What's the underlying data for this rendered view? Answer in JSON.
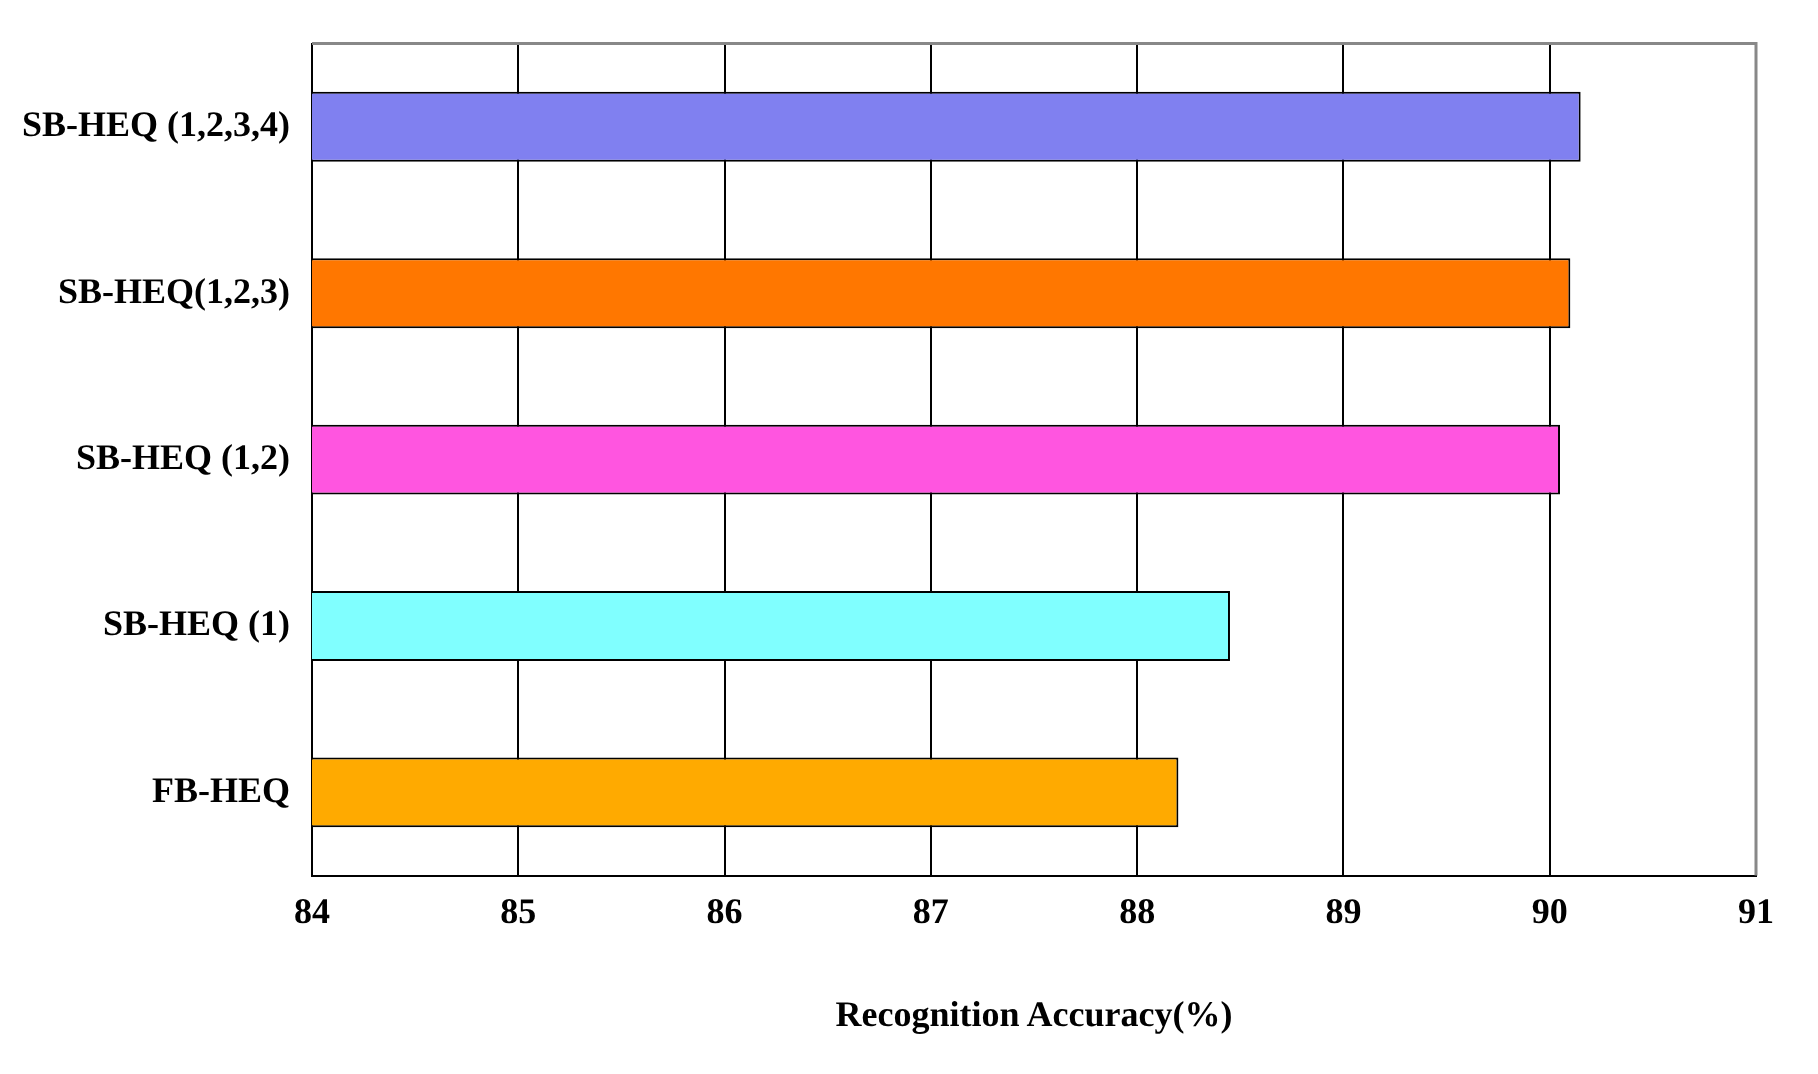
{
  "chart_data": {
    "type": "bar",
    "orientation": "horizontal",
    "xlabel": "Recognition Accuracy(%)",
    "categories": [
      "SB-HEQ (1,2,3,4)",
      "SB-HEQ(1,2,3)",
      "SB-HEQ (1,2)",
      "SB-HEQ (1)",
      "FB-HEQ"
    ],
    "values": [
      90.15,
      90.1,
      90.05,
      88.45,
      88.2
    ],
    "colors": [
      "#8080f0",
      "#ff7700",
      "#ff55e0",
      "#80ffff",
      "#ffaa00"
    ],
    "xlim": [
      84,
      91
    ],
    "xticks": [
      84,
      85,
      86,
      87,
      88,
      89,
      90,
      91
    ],
    "grid": "x"
  }
}
